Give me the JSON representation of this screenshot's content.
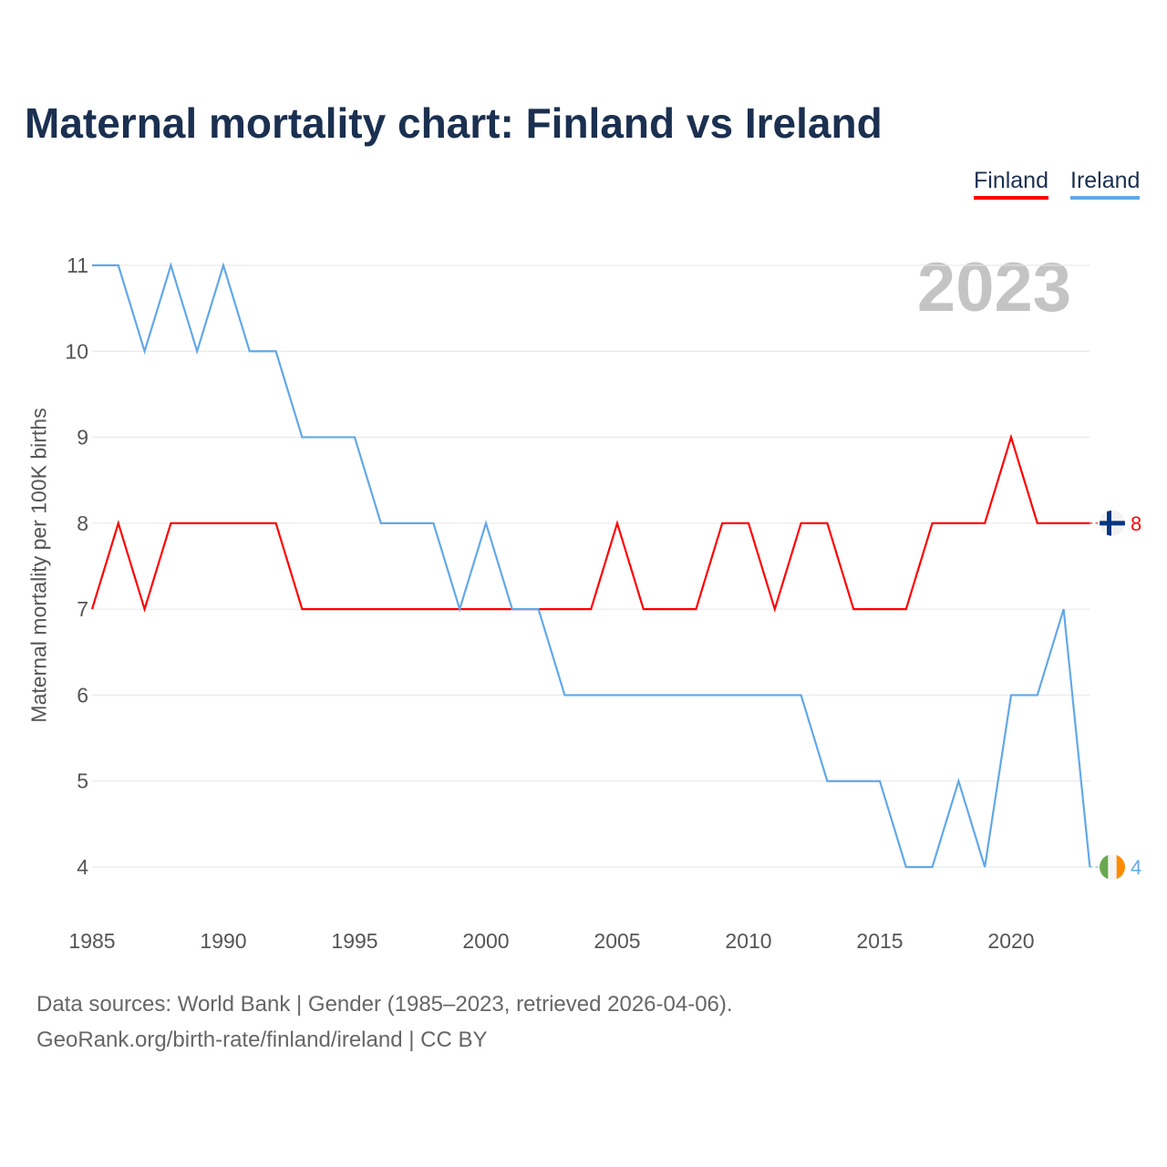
{
  "title": "Maternal mortality chart: Finland vs Ireland",
  "year_label": "2023",
  "sources": [
    "Data sources: World Bank | Gender (1985–2023, retrieved 2026-04-06).",
    "GeoRank.org/birth-rate/finland/ireland | CC BY"
  ],
  "chart_data": {
    "type": "line",
    "title": "Maternal mortality chart: Finland vs Ireland",
    "xlabel": "",
    "ylabel": "Maternal mortality per 100K births",
    "xlim": [
      1985,
      2023
    ],
    "ylim": [
      4,
      11
    ],
    "x_ticks": [
      1985,
      1990,
      1995,
      2000,
      2005,
      2010,
      2015,
      2020
    ],
    "y_ticks": [
      4,
      5,
      6,
      7,
      8,
      9,
      10,
      11
    ],
    "grid": true,
    "legend_position": "top-right",
    "x": [
      1985,
      1986,
      1987,
      1988,
      1989,
      1990,
      1991,
      1992,
      1993,
      1994,
      1995,
      1996,
      1997,
      1998,
      1999,
      2000,
      2001,
      2002,
      2003,
      2004,
      2005,
      2006,
      2007,
      2008,
      2009,
      2010,
      2011,
      2012,
      2013,
      2014,
      2015,
      2016,
      2017,
      2018,
      2019,
      2020,
      2021,
      2022,
      2023
    ],
    "series": [
      {
        "name": "Finland",
        "color": "#ff0000",
        "end_label": "8",
        "values": [
          7,
          8,
          7,
          8,
          8,
          8,
          8,
          8,
          7,
          7,
          7,
          7,
          7,
          7,
          7,
          7,
          7,
          7,
          7,
          7,
          8,
          7,
          7,
          7,
          8,
          8,
          7,
          8,
          8,
          7,
          7,
          7,
          8,
          8,
          8,
          9,
          8,
          8,
          8
        ]
      },
      {
        "name": "Ireland",
        "color": "#62a8e8",
        "end_label": "4",
        "values": [
          11,
          11,
          10,
          11,
          10,
          11,
          10,
          10,
          9,
          9,
          9,
          8,
          8,
          8,
          7,
          8,
          7,
          7,
          6,
          6,
          6,
          6,
          6,
          6,
          6,
          6,
          6,
          6,
          5,
          5,
          5,
          4,
          4,
          5,
          4,
          6,
          6,
          7,
          4
        ]
      }
    ]
  }
}
